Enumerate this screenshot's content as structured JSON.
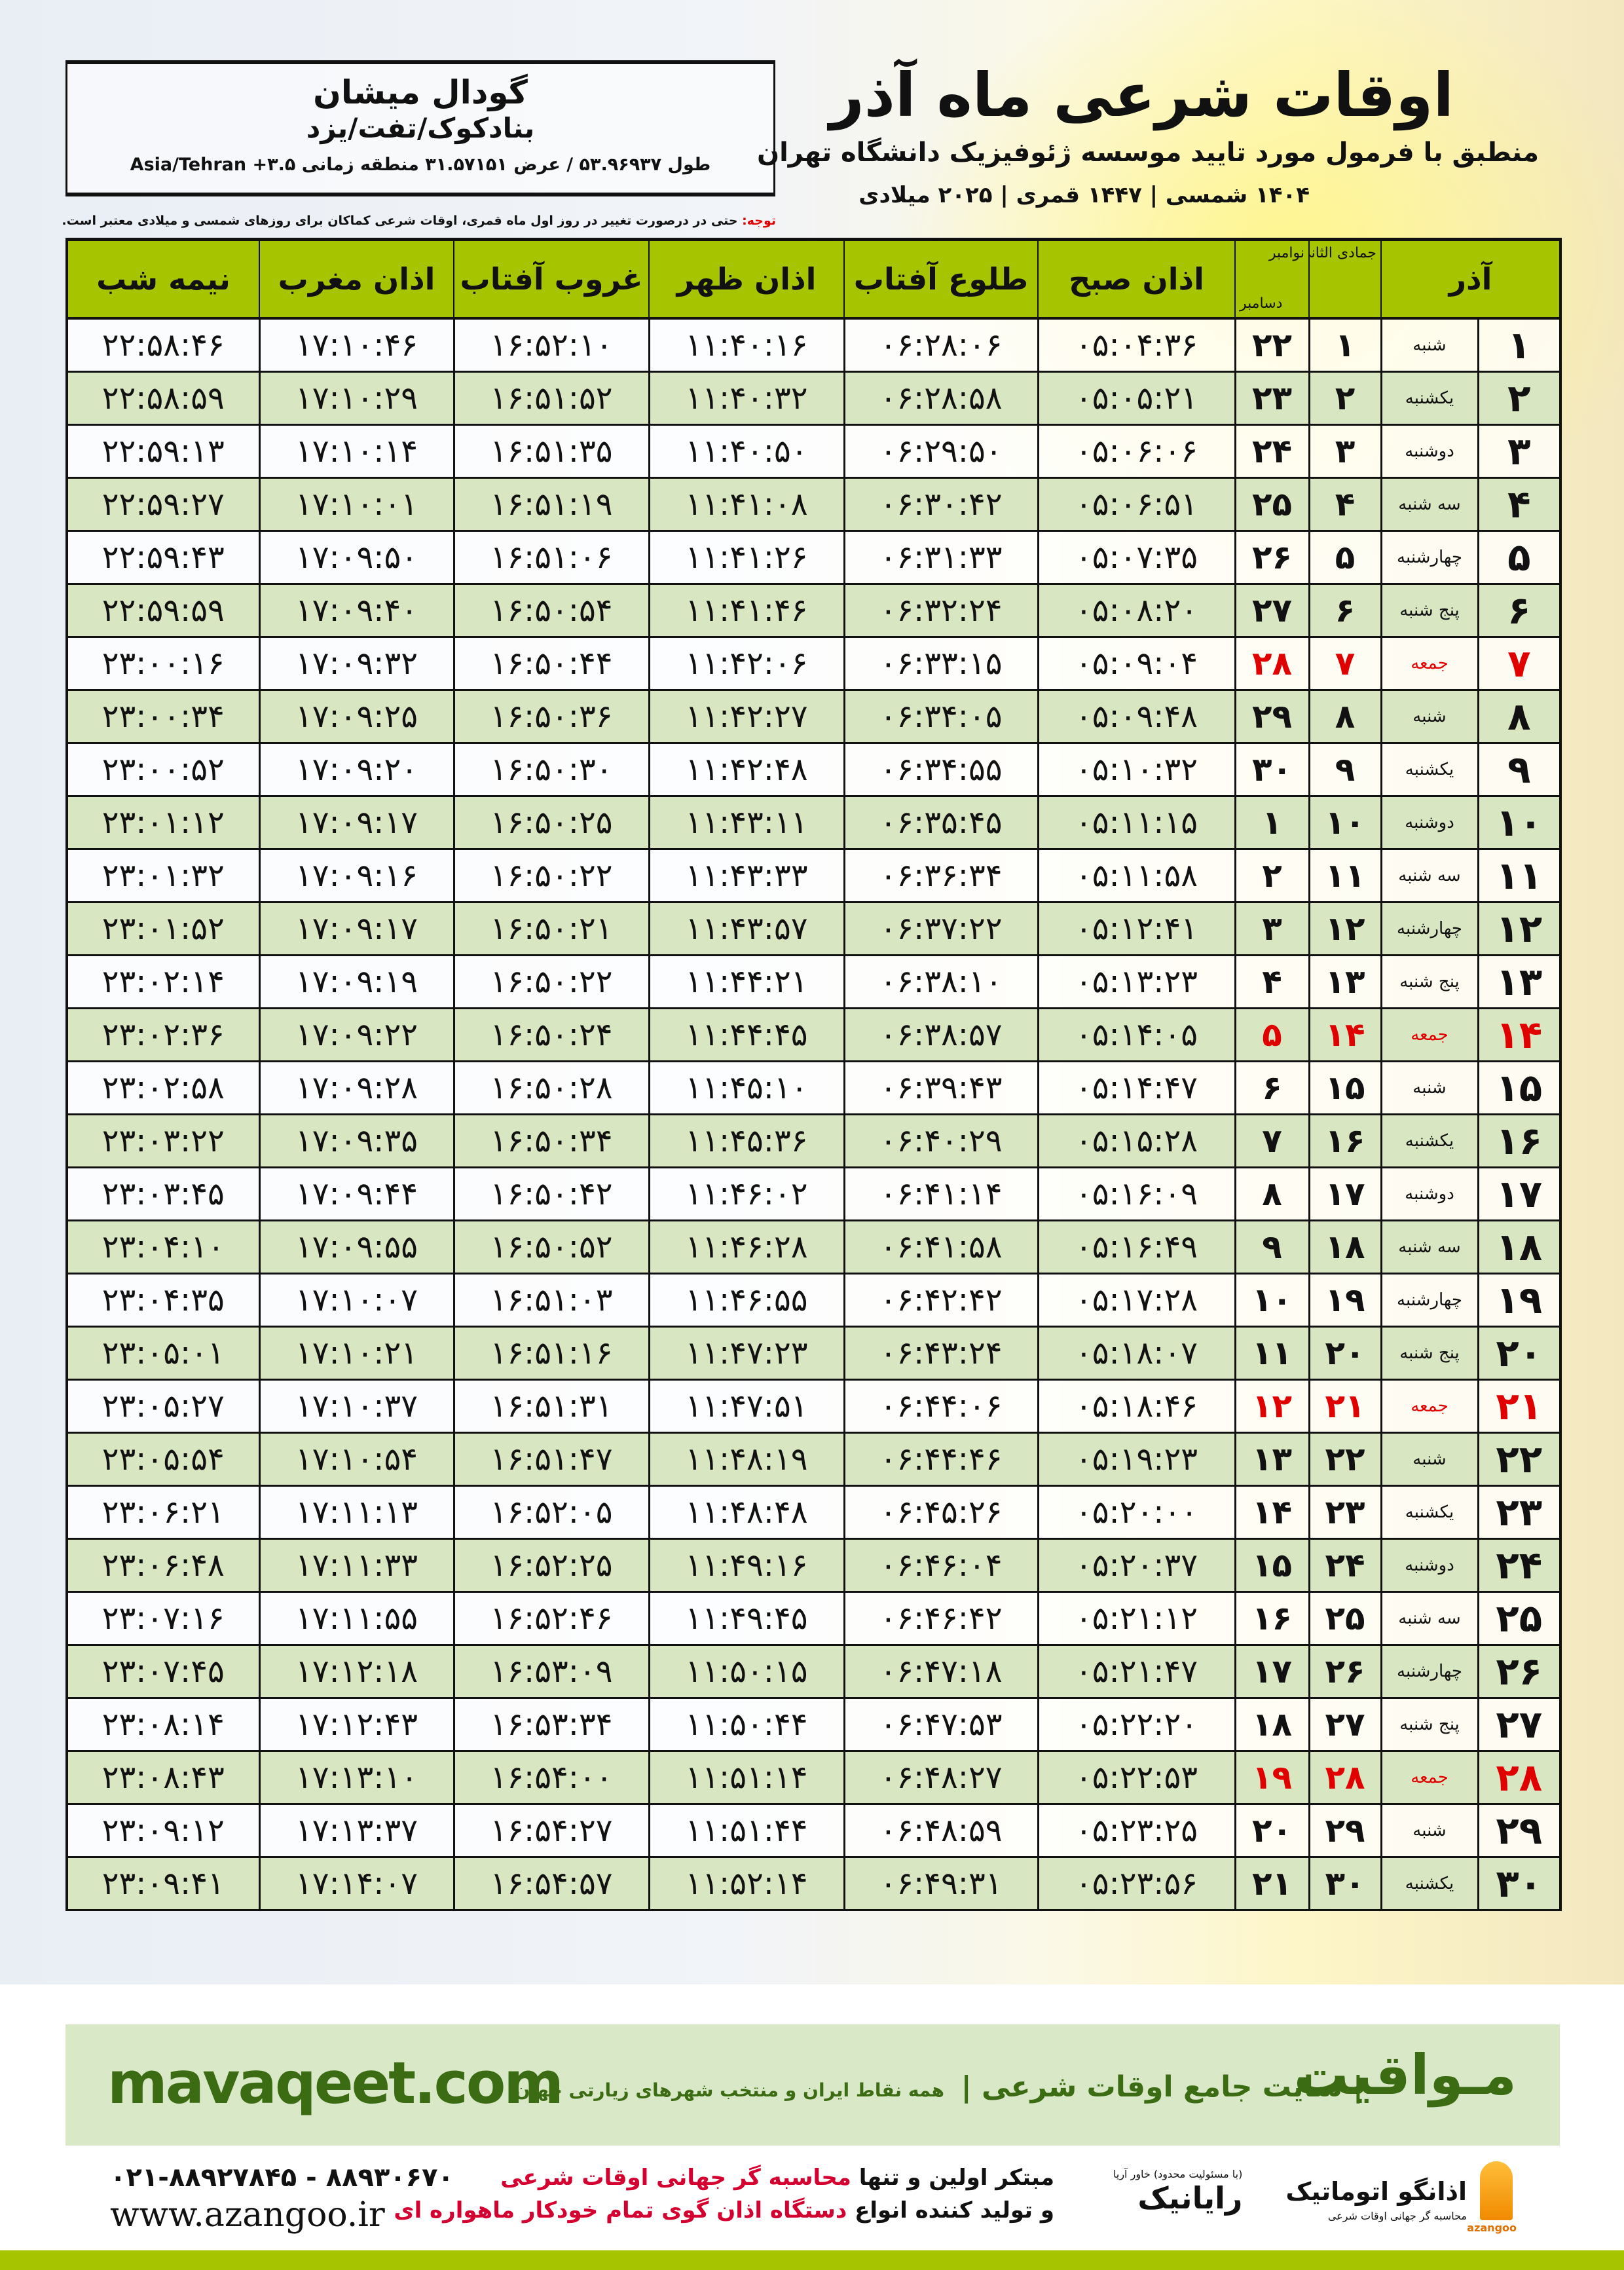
{
  "header": {
    "title": "اوقات شرعی ماه آذر",
    "subtitle": "منطبق با فرمول مورد تایید موسسه ژئوفیزیک دانشگاه تهران",
    "dates": "۱۴۰۴ شمسی | ۱۴۴۷ قمری | ۲۰۲۵ میلادی"
  },
  "location": {
    "city": "گودال میشان",
    "region": "بنادکوک/تفت/یزد",
    "coords": "طول ۵۳.۹۶۹۳۷ / عرض ۳۱.۵۷۱۵۱ منطقه زمانی ۳.۵+ Asia/Tehran"
  },
  "note": {
    "label": "توجه:",
    "text": " حتی در درصورت تغییر در روز اول ماه قمری، اوقات شرعی کماکان برای روزهای شمسی و میلادی معتبر است."
  },
  "table": {
    "headers": {
      "month": "آذر",
      "hijri": "جمادی الثانی",
      "gregorian_top": "نوامبر",
      "gregorian_bottom": "دسامبر",
      "fajr": "اذان صبح",
      "sunrise": "طلوع آفتاب",
      "dhuhr": "اذان ظهر",
      "sunset": "غروب آفتاب",
      "maghrib": "اذان مغرب",
      "midnight": "نیمه شب"
    },
    "holiday_color": "#e00000",
    "rows": [
      {
        "day": "۱",
        "weekday": "شنبه",
        "hijri": "۱",
        "gregorian": "۲۲",
        "fajr": "۰۵:۰۴:۳۶",
        "sunrise": "۰۶:۲۸:۰۶",
        "dhuhr": "۱۱:۴۰:۱۶",
        "sunset": "۱۶:۵۲:۱۰",
        "maghrib": "۱۷:۱۰:۴۶",
        "midnight": "۲۲:۵۸:۴۶",
        "holiday": false
      },
      {
        "day": "۲",
        "weekday": "یکشنبه",
        "hijri": "۲",
        "gregorian": "۲۳",
        "fajr": "۰۵:۰۵:۲۱",
        "sunrise": "۰۶:۲۸:۵۸",
        "dhuhr": "۱۱:۴۰:۳۲",
        "sunset": "۱۶:۵۱:۵۲",
        "maghrib": "۱۷:۱۰:۲۹",
        "midnight": "۲۲:۵۸:۵۹",
        "holiday": false
      },
      {
        "day": "۳",
        "weekday": "دوشنبه",
        "hijri": "۳",
        "gregorian": "۲۴",
        "fajr": "۰۵:۰۶:۰۶",
        "sunrise": "۰۶:۲۹:۵۰",
        "dhuhr": "۱۱:۴۰:۵۰",
        "sunset": "۱۶:۵۱:۳۵",
        "maghrib": "۱۷:۱۰:۱۴",
        "midnight": "۲۲:۵۹:۱۳",
        "holiday": false
      },
      {
        "day": "۴",
        "weekday": "سه شنبه",
        "hijri": "۴",
        "gregorian": "۲۵",
        "fajr": "۰۵:۰۶:۵۱",
        "sunrise": "۰۶:۳۰:۴۲",
        "dhuhr": "۱۱:۴۱:۰۸",
        "sunset": "۱۶:۵۱:۱۹",
        "maghrib": "۱۷:۱۰:۰۱",
        "midnight": "۲۲:۵۹:۲۷",
        "holiday": false
      },
      {
        "day": "۵",
        "weekday": "چهارشنبه",
        "hijri": "۵",
        "gregorian": "۲۶",
        "fajr": "۰۵:۰۷:۳۵",
        "sunrise": "۰۶:۳۱:۳۳",
        "dhuhr": "۱۱:۴۱:۲۶",
        "sunset": "۱۶:۵۱:۰۶",
        "maghrib": "۱۷:۰۹:۵۰",
        "midnight": "۲۲:۵۹:۴۳",
        "holiday": false
      },
      {
        "day": "۶",
        "weekday": "پنج شنبه",
        "hijri": "۶",
        "gregorian": "۲۷",
        "fajr": "۰۵:۰۸:۲۰",
        "sunrise": "۰۶:۳۲:۲۴",
        "dhuhr": "۱۱:۴۱:۴۶",
        "sunset": "۱۶:۵۰:۵۴",
        "maghrib": "۱۷:۰۹:۴۰",
        "midnight": "۲۲:۵۹:۵۹",
        "holiday": false
      },
      {
        "day": "۷",
        "weekday": "جمعه",
        "hijri": "۷",
        "gregorian": "۲۸",
        "fajr": "۰۵:۰۹:۰۴",
        "sunrise": "۰۶:۳۳:۱۵",
        "dhuhr": "۱۱:۴۲:۰۶",
        "sunset": "۱۶:۵۰:۴۴",
        "maghrib": "۱۷:۰۹:۳۲",
        "midnight": "۲۳:۰۰:۱۶",
        "holiday": true
      },
      {
        "day": "۸",
        "weekday": "شنبه",
        "hijri": "۸",
        "gregorian": "۲۹",
        "fajr": "۰۵:۰۹:۴۸",
        "sunrise": "۰۶:۳۴:۰۵",
        "dhuhr": "۱۱:۴۲:۲۷",
        "sunset": "۱۶:۵۰:۳۶",
        "maghrib": "۱۷:۰۹:۲۵",
        "midnight": "۲۳:۰۰:۳۴",
        "holiday": false
      },
      {
        "day": "۹",
        "weekday": "یکشنبه",
        "hijri": "۹",
        "gregorian": "۳۰",
        "fajr": "۰۵:۱۰:۳۲",
        "sunrise": "۰۶:۳۴:۵۵",
        "dhuhr": "۱۱:۴۲:۴۸",
        "sunset": "۱۶:۵۰:۳۰",
        "maghrib": "۱۷:۰۹:۲۰",
        "midnight": "۲۳:۰۰:۵۲",
        "holiday": false
      },
      {
        "day": "۱۰",
        "weekday": "دوشنبه",
        "hijri": "۱۰",
        "gregorian": "۱",
        "fajr": "۰۵:۱۱:۱۵",
        "sunrise": "۰۶:۳۵:۴۵",
        "dhuhr": "۱۱:۴۳:۱۱",
        "sunset": "۱۶:۵۰:۲۵",
        "maghrib": "۱۷:۰۹:۱۷",
        "midnight": "۲۳:۰۱:۱۲",
        "holiday": false
      },
      {
        "day": "۱۱",
        "weekday": "سه شنبه",
        "hijri": "۱۱",
        "gregorian": "۲",
        "fajr": "۰۵:۱۱:۵۸",
        "sunrise": "۰۶:۳۶:۳۴",
        "dhuhr": "۱۱:۴۳:۳۳",
        "sunset": "۱۶:۵۰:۲۲",
        "maghrib": "۱۷:۰۹:۱۶",
        "midnight": "۲۳:۰۱:۳۲",
        "holiday": false
      },
      {
        "day": "۱۲",
        "weekday": "چهارشنبه",
        "hijri": "۱۲",
        "gregorian": "۳",
        "fajr": "۰۵:۱۲:۴۱",
        "sunrise": "۰۶:۳۷:۲۲",
        "dhuhr": "۱۱:۴۳:۵۷",
        "sunset": "۱۶:۵۰:۲۱",
        "maghrib": "۱۷:۰۹:۱۷",
        "midnight": "۲۳:۰۱:۵۲",
        "holiday": false
      },
      {
        "day": "۱۳",
        "weekday": "پنج شنبه",
        "hijri": "۱۳",
        "gregorian": "۴",
        "fajr": "۰۵:۱۳:۲۳",
        "sunrise": "۰۶:۳۸:۱۰",
        "dhuhr": "۱۱:۴۴:۲۱",
        "sunset": "۱۶:۵۰:۲۲",
        "maghrib": "۱۷:۰۹:۱۹",
        "midnight": "۲۳:۰۲:۱۴",
        "holiday": false
      },
      {
        "day": "۱۴",
        "weekday": "جمعه",
        "hijri": "۱۴",
        "gregorian": "۵",
        "fajr": "۰۵:۱۴:۰۵",
        "sunrise": "۰۶:۳۸:۵۷",
        "dhuhr": "۱۱:۴۴:۴۵",
        "sunset": "۱۶:۵۰:۲۴",
        "maghrib": "۱۷:۰۹:۲۲",
        "midnight": "۲۳:۰۲:۳۶",
        "holiday": true
      },
      {
        "day": "۱۵",
        "weekday": "شنبه",
        "hijri": "۱۵",
        "gregorian": "۶",
        "fajr": "۰۵:۱۴:۴۷",
        "sunrise": "۰۶:۳۹:۴۳",
        "dhuhr": "۱۱:۴۵:۱۰",
        "sunset": "۱۶:۵۰:۲۸",
        "maghrib": "۱۷:۰۹:۲۸",
        "midnight": "۲۳:۰۲:۵۸",
        "holiday": false
      },
      {
        "day": "۱۶",
        "weekday": "یکشنبه",
        "hijri": "۱۶",
        "gregorian": "۷",
        "fajr": "۰۵:۱۵:۲۸",
        "sunrise": "۰۶:۴۰:۲۹",
        "dhuhr": "۱۱:۴۵:۳۶",
        "sunset": "۱۶:۵۰:۳۴",
        "maghrib": "۱۷:۰۹:۳۵",
        "midnight": "۲۳:۰۳:۲۲",
        "holiday": false
      },
      {
        "day": "۱۷",
        "weekday": "دوشنبه",
        "hijri": "۱۷",
        "gregorian": "۸",
        "fajr": "۰۵:۱۶:۰۹",
        "sunrise": "۰۶:۴۱:۱۴",
        "dhuhr": "۱۱:۴۶:۰۲",
        "sunset": "۱۶:۵۰:۴۲",
        "maghrib": "۱۷:۰۹:۴۴",
        "midnight": "۲۳:۰۳:۴۵",
        "holiday": false
      },
      {
        "day": "۱۸",
        "weekday": "سه شنبه",
        "hijri": "۱۸",
        "gregorian": "۹",
        "fajr": "۰۵:۱۶:۴۹",
        "sunrise": "۰۶:۴۱:۵۸",
        "dhuhr": "۱۱:۴۶:۲۸",
        "sunset": "۱۶:۵۰:۵۲",
        "maghrib": "۱۷:۰۹:۵۵",
        "midnight": "۲۳:۰۴:۱۰",
        "holiday": false
      },
      {
        "day": "۱۹",
        "weekday": "چهارشنبه",
        "hijri": "۱۹",
        "gregorian": "۱۰",
        "fajr": "۰۵:۱۷:۲۸",
        "sunrise": "۰۶:۴۲:۴۲",
        "dhuhr": "۱۱:۴۶:۵۵",
        "sunset": "۱۶:۵۱:۰۳",
        "maghrib": "۱۷:۱۰:۰۷",
        "midnight": "۲۳:۰۴:۳۵",
        "holiday": false
      },
      {
        "day": "۲۰",
        "weekday": "پنج شنبه",
        "hijri": "۲۰",
        "gregorian": "۱۱",
        "fajr": "۰۵:۱۸:۰۷",
        "sunrise": "۰۶:۴۳:۲۴",
        "dhuhr": "۱۱:۴۷:۲۳",
        "sunset": "۱۶:۵۱:۱۶",
        "maghrib": "۱۷:۱۰:۲۱",
        "midnight": "۲۳:۰۵:۰۱",
        "holiday": false
      },
      {
        "day": "۲۱",
        "weekday": "جمعه",
        "hijri": "۲۱",
        "gregorian": "۱۲",
        "fajr": "۰۵:۱۸:۴۶",
        "sunrise": "۰۶:۴۴:۰۶",
        "dhuhr": "۱۱:۴۷:۵۱",
        "sunset": "۱۶:۵۱:۳۱",
        "maghrib": "۱۷:۱۰:۳۷",
        "midnight": "۲۳:۰۵:۲۷",
        "holiday": true
      },
      {
        "day": "۲۲",
        "weekday": "شنبه",
        "hijri": "۲۲",
        "gregorian": "۱۳",
        "fajr": "۰۵:۱۹:۲۳",
        "sunrise": "۰۶:۴۴:۴۶",
        "dhuhr": "۱۱:۴۸:۱۹",
        "sunset": "۱۶:۵۱:۴۷",
        "maghrib": "۱۷:۱۰:۵۴",
        "midnight": "۲۳:۰۵:۵۴",
        "holiday": false
      },
      {
        "day": "۲۳",
        "weekday": "یکشنبه",
        "hijri": "۲۳",
        "gregorian": "۱۴",
        "fajr": "۰۵:۲۰:۰۰",
        "sunrise": "۰۶:۴۵:۲۶",
        "dhuhr": "۱۱:۴۸:۴۸",
        "sunset": "۱۶:۵۲:۰۵",
        "maghrib": "۱۷:۱۱:۱۳",
        "midnight": "۲۳:۰۶:۲۱",
        "holiday": false
      },
      {
        "day": "۲۴",
        "weekday": "دوشنبه",
        "hijri": "۲۴",
        "gregorian": "۱۵",
        "fajr": "۰۵:۲۰:۳۷",
        "sunrise": "۰۶:۴۶:۰۴",
        "dhuhr": "۱۱:۴۹:۱۶",
        "sunset": "۱۶:۵۲:۲۵",
        "maghrib": "۱۷:۱۱:۳۳",
        "midnight": "۲۳:۰۶:۴۸",
        "holiday": false
      },
      {
        "day": "۲۵",
        "weekday": "سه شنبه",
        "hijri": "۲۵",
        "gregorian": "۱۶",
        "fajr": "۰۵:۲۱:۱۲",
        "sunrise": "۰۶:۴۶:۴۲",
        "dhuhr": "۱۱:۴۹:۴۵",
        "sunset": "۱۶:۵۲:۴۶",
        "maghrib": "۱۷:۱۱:۵۵",
        "midnight": "۲۳:۰۷:۱۶",
        "holiday": false
      },
      {
        "day": "۲۶",
        "weekday": "چهارشنبه",
        "hijri": "۲۶",
        "gregorian": "۱۷",
        "fajr": "۰۵:۲۱:۴۷",
        "sunrise": "۰۶:۴۷:۱۸",
        "dhuhr": "۱۱:۵۰:۱۵",
        "sunset": "۱۶:۵۳:۰۹",
        "maghrib": "۱۷:۱۲:۱۸",
        "midnight": "۲۳:۰۷:۴۵",
        "holiday": false
      },
      {
        "day": "۲۷",
        "weekday": "پنج شنبه",
        "hijri": "۲۷",
        "gregorian": "۱۸",
        "fajr": "۰۵:۲۲:۲۰",
        "sunrise": "۰۶:۴۷:۵۳",
        "dhuhr": "۱۱:۵۰:۴۴",
        "sunset": "۱۶:۵۳:۳۴",
        "maghrib": "۱۷:۱۲:۴۳",
        "midnight": "۲۳:۰۸:۱۴",
        "holiday": false
      },
      {
        "day": "۲۸",
        "weekday": "جمعه",
        "hijri": "۲۸",
        "gregorian": "۱۹",
        "fajr": "۰۵:۲۲:۵۳",
        "sunrise": "۰۶:۴۸:۲۷",
        "dhuhr": "۱۱:۵۱:۱۴",
        "sunset": "۱۶:۵۴:۰۰",
        "maghrib": "۱۷:۱۳:۱۰",
        "midnight": "۲۳:۰۸:۴۳",
        "holiday": true
      },
      {
        "day": "۲۹",
        "weekday": "شنبه",
        "hijri": "۲۹",
        "gregorian": "۲۰",
        "fajr": "۰۵:۲۳:۲۵",
        "sunrise": "۰۶:۴۸:۵۹",
        "dhuhr": "۱۱:۵۱:۴۴",
        "sunset": "۱۶:۵۴:۲۷",
        "maghrib": "۱۷:۱۳:۳۷",
        "midnight": "۲۳:۰۹:۱۲",
        "holiday": false
      },
      {
        "day": "۳۰",
        "weekday": "یکشنبه",
        "hijri": "۳۰",
        "gregorian": "۲۱",
        "fajr": "۰۵:۲۳:۵۶",
        "sunrise": "۰۶:۴۹:۳۱",
        "dhuhr": "۱۱:۵۲:۱۴",
        "sunset": "۱۶:۵۴:۵۷",
        "maghrib": "۱۷:۱۴:۰۷",
        "midnight": "۲۳:۰۹:۴۱",
        "holiday": false
      }
    ]
  },
  "banner": {
    "brand": "مـواقیت",
    "tagline": "| سایت جامع اوقات شرعی |",
    "tagline2": "همه نقاط ایران و منتخب شهرهای زیارتی جهان",
    "site": "mavaqeet.com",
    "bg_color": "#d9e8c6",
    "text_color": "#3b6b12"
  },
  "footer": {
    "phone": "۰۲۱-۸۸۹۲۷۸۴۵ - ۸۸۹۳۰۶۷۰",
    "website": "www.azangoo.ir",
    "promo_line1_a": "مبتکر اولین و تنها ",
    "promo_line1_b": "محاسبه گر جهانی اوقات شرعی",
    "promo_line2_a": "و تولید کننده انواع ",
    "promo_line2_b": "دستگاه اذان گوی تمام خودکار ماهواره ای",
    "logo_rayanik": "رایانیک",
    "logo_rayanik_small": "(با مسئولیت محدود) خاور آریا",
    "logo_azangoo": "اذانگو اتوماتیک",
    "logo_azangoo_sub": "محاسبه گر جهانی اوقات شرعی",
    "logo_azangoo_en": "azangoo",
    "accent_color": "#a6c500"
  }
}
